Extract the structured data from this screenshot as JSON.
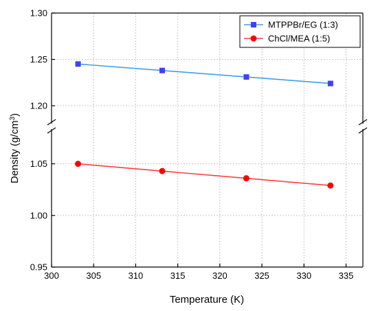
{
  "chart_data": {
    "type": "line",
    "xlabel": "Temperature (K)",
    "ylabel_main": "Density (g/cm",
    "ylabel_sup": "3",
    "ylabel_close": ")",
    "xlim": [
      300,
      337
    ],
    "x_ticks": [
      "300",
      "305",
      "310",
      "315",
      "320",
      "325",
      "330",
      "335"
    ],
    "y_axis_break": true,
    "y_upper_range": [
      1.18,
      1.3
    ],
    "y_upper_ticks": [
      "1.20",
      "1.25",
      "1.30"
    ],
    "y_lower_range": [
      0.95,
      1.085
    ],
    "y_lower_ticks": [
      "0.95",
      "1.00",
      "1.05"
    ],
    "grid": true,
    "legend_position": "top-right",
    "series": [
      {
        "name": "MTPPBr/EG (1:3)",
        "color": "#4040ff",
        "line_color": "#3ea0e6",
        "marker": "square",
        "x": [
          303.15,
          313.15,
          323.15,
          333.15
        ],
        "y": [
          1.245,
          1.238,
          1.231,
          1.224
        ]
      },
      {
        "name": "ChCl/MEA (1:5)",
        "color": "#ff0000",
        "line_color": "#ff4040",
        "marker": "circle",
        "x": [
          303.15,
          313.15,
          323.15,
          333.15
        ],
        "y": [
          1.05,
          1.043,
          1.036,
          1.029
        ]
      }
    ]
  }
}
